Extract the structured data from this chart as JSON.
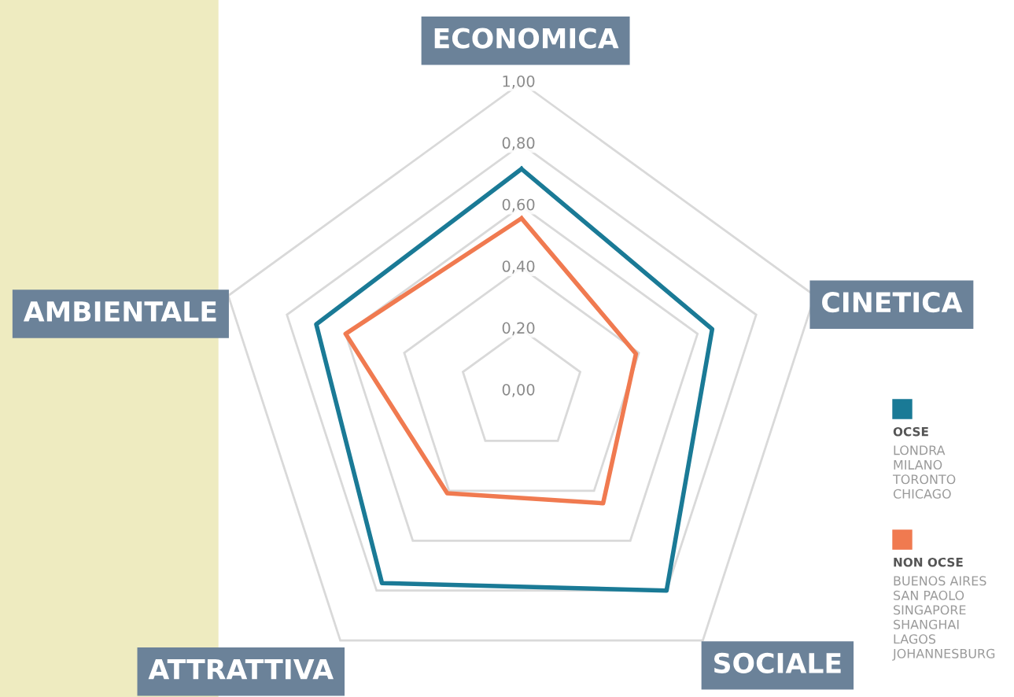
{
  "chart_data": {
    "type": "radar",
    "categories": [
      "ECONOMICA",
      "CINETICA",
      "SOCIALE",
      "ATTRATTIVA",
      "AMBIENTALE"
    ],
    "series": [
      {
        "name": "OCSE",
        "color": "#1a7a96",
        "values": [
          0.72,
          0.65,
          0.8,
          0.77,
          0.7
        ]
      },
      {
        "name": "NON OCSE",
        "color": "#f07a50",
        "values": [
          0.56,
          0.39,
          0.45,
          0.41,
          0.6
        ]
      }
    ],
    "ylim": [
      0,
      1
    ],
    "yticks": [
      {
        "value": 0,
        "label": "0,00"
      },
      {
        "value": 0.2,
        "label": "0,20"
      },
      {
        "value": 0.4,
        "label": "0,40"
      },
      {
        "value": 0.6,
        "label": "0,60"
      },
      {
        "value": 0.8,
        "label": "0,80"
      },
      {
        "value": 1,
        "label": "1,00"
      }
    ],
    "grid": true,
    "legend": "bottom right",
    "annotations": [
      "LONDRA\nMILANO\nTORONTO\nCHICAGO",
      "BUENOS AIRES\nSAN PAOLO\nSINGAPORE\nSHANGHAI\nLAGOS\nJOHANNESBURG"
    ]
  }
}
